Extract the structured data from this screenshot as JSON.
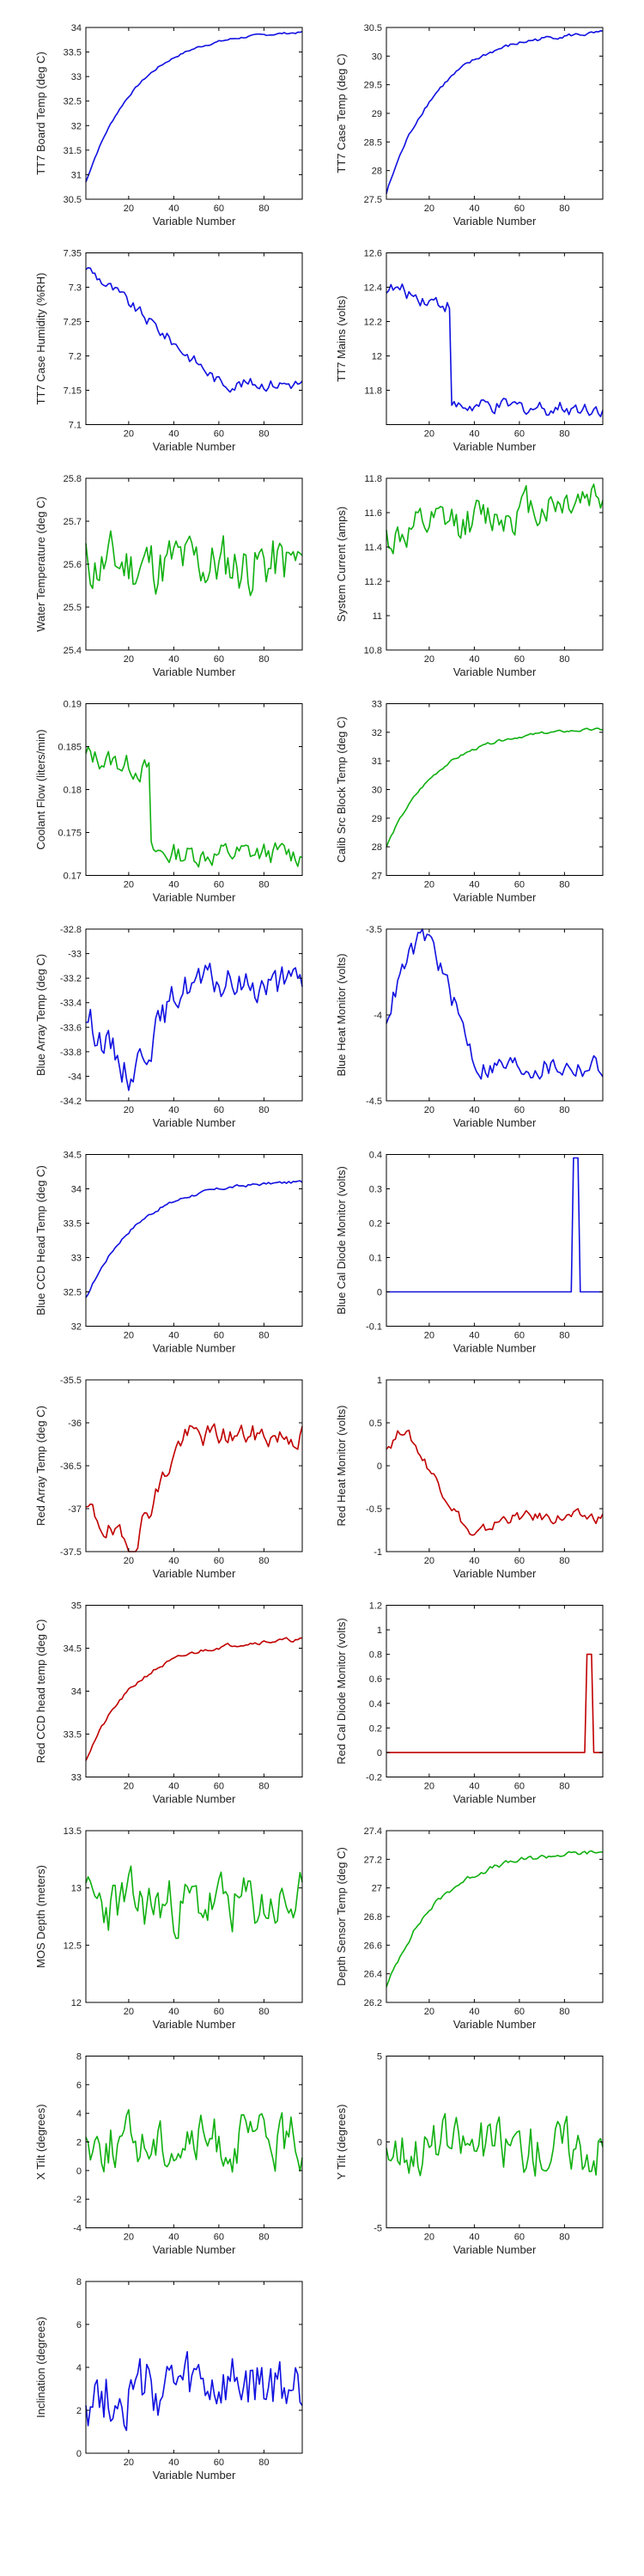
{
  "colors": {
    "blue": "#1010e0",
    "green": "#10b010",
    "red": "#c00000"
  },
  "chart_data": [
    {
      "type": "line",
      "xlabel": "Variable Number",
      "ylabel": "TT7 Board Temp (deg C)",
      "xlim": [
        1,
        97
      ],
      "ylim": [
        30.5,
        34
      ],
      "xticks": [
        20,
        40,
        60,
        80
      ],
      "yticks": [
        30.5,
        31,
        31.5,
        32,
        32.5,
        33,
        33.5,
        34
      ],
      "color": "blue",
      "shape": "rise",
      "y_start": 30.85,
      "y_end": 33.9,
      "noise": 0.02
    },
    {
      "type": "line",
      "xlabel": "Variable Number",
      "ylabel": "TT7 Case Temp (deg C)",
      "xlim": [
        1,
        97
      ],
      "ylim": [
        27.5,
        30.5
      ],
      "xticks": [
        20,
        40,
        60,
        80
      ],
      "yticks": [
        27.5,
        28,
        28.5,
        29,
        29.5,
        30,
        30.5
      ],
      "color": "blue",
      "shape": "rise",
      "y_start": 27.6,
      "y_end": 30.4,
      "noise": 0.03
    },
    {
      "type": "line",
      "xlabel": "Variable Number",
      "ylabel": "TT7 Case Humidity (%RH)",
      "xlim": [
        1,
        97
      ],
      "ylim": [
        7.1,
        7.35
      ],
      "xticks": [
        20,
        40,
        60,
        80
      ],
      "yticks": [
        7.1,
        7.15,
        7.2,
        7.25,
        7.3,
        7.35
      ],
      "color": "blue",
      "shape": "fall",
      "y_start": 7.33,
      "y_end": 7.16,
      "noise": 0.008
    },
    {
      "type": "line",
      "xlabel": "Variable Number",
      "ylabel": "TT7 Mains  (volts)",
      "xlim": [
        1,
        97
      ],
      "ylim": [
        11.6,
        12.6
      ],
      "xticks": [
        20,
        40,
        60,
        80
      ],
      "yticks": [
        11.8,
        12,
        12.2,
        12.4,
        12.6
      ],
      "color": "blue",
      "shape": "drop",
      "y_start": 12.4,
      "y_end": 11.7,
      "noise": 0.04
    },
    {
      "type": "line",
      "xlabel": "Variable Number",
      "ylabel": "Water Temperature (deg C)",
      "xlim": [
        1,
        97
      ],
      "ylim": [
        25.4,
        25.8
      ],
      "xticks": [
        20,
        40,
        60,
        80
      ],
      "yticks": [
        25.4,
        25.5,
        25.6,
        25.7,
        25.8
      ],
      "color": "green",
      "shape": "noise",
      "y_start": 25.6,
      "y_end": 25.6,
      "noise": 0.06
    },
    {
      "type": "line",
      "xlabel": "Variable Number",
      "ylabel": "System Current (amps)",
      "xlim": [
        1,
        97
      ],
      "ylim": [
        10.8,
        11.8
      ],
      "xticks": [
        20,
        40,
        60,
        80
      ],
      "yticks": [
        10.8,
        11,
        11.2,
        11.4,
        11.6,
        11.8
      ],
      "color": "green",
      "shape": "noise_up",
      "y_start": 11.45,
      "y_end": 11.72,
      "noise": 0.1
    },
    {
      "type": "line",
      "xlabel": "Variable Number",
      "ylabel": "Coolant Flow (liters/min)",
      "xlim": [
        1,
        97
      ],
      "ylim": [
        0.17,
        0.19
      ],
      "xticks": [
        20,
        40,
        60,
        80
      ],
      "yticks": [
        0.17,
        0.175,
        0.18,
        0.185,
        0.19
      ],
      "color": "green",
      "shape": "drop",
      "y_start": 0.184,
      "y_end": 0.1725,
      "noise": 0.0012
    },
    {
      "type": "line",
      "xlabel": "Variable Number",
      "ylabel": "Calib Src Block Temp (deg C)",
      "xlim": [
        1,
        97
      ],
      "ylim": [
        27,
        33
      ],
      "xticks": [
        20,
        40,
        60,
        80
      ],
      "yticks": [
        27,
        28,
        29,
        30,
        31,
        32,
        33
      ],
      "color": "green",
      "shape": "rise",
      "y_start": 28,
      "y_end": 32.1,
      "noise": 0.04
    },
    {
      "type": "line",
      "xlabel": "Variable Number",
      "ylabel": "Blue Array Temp (deg C)",
      "xlim": [
        1,
        97
      ],
      "ylim": [
        -34.2,
        -32.8
      ],
      "xticks": [
        20,
        40,
        60,
        80
      ],
      "yticks": [
        -34.2,
        -34,
        -33.8,
        -33.6,
        -33.4,
        -33.2,
        -33,
        -32.8
      ],
      "color": "blue",
      "shape": "dip_rise",
      "y_start": -33.5,
      "y_end": -33.25,
      "noise": 0.12
    },
    {
      "type": "line",
      "xlabel": "Variable Number",
      "ylabel": "Blue Heat Monitor (volts)",
      "xlim": [
        1,
        97
      ],
      "ylim": [
        -4.5,
        -3.5
      ],
      "xticks": [
        20,
        40,
        60,
        80
      ],
      "yticks": [
        -4.5,
        -4,
        -3.5
      ],
      "color": "blue",
      "shape": "hump",
      "y_start": -4.0,
      "y_end": -4.3,
      "noise": 0.06
    },
    {
      "type": "line",
      "xlabel": "Variable Number",
      "ylabel": "Blue CCD Head Temp (deg C)",
      "xlim": [
        1,
        97
      ],
      "ylim": [
        32,
        34.5
      ],
      "xticks": [
        20,
        40,
        60,
        80
      ],
      "yticks": [
        32,
        32.5,
        33,
        33.5,
        34,
        34.5
      ],
      "color": "blue",
      "shape": "rise",
      "y_start": 32.4,
      "y_end": 34.1,
      "noise": 0.02
    },
    {
      "type": "line",
      "xlabel": "Variable Number",
      "ylabel": "Blue Cal Diode Monitor (volts)",
      "xlim": [
        1,
        97
      ],
      "ylim": [
        -0.1,
        0.4
      ],
      "xticks": [
        20,
        40,
        60,
        80
      ],
      "yticks": [
        -0.1,
        0,
        0.1,
        0.2,
        0.3,
        0.4
      ],
      "color": "blue",
      "shape": "spike",
      "y_start": 0,
      "y_end": 0,
      "spike_at": [
        84,
        86
      ],
      "spike_val": 0.39,
      "noise": 0.0
    },
    {
      "type": "line",
      "xlabel": "Variable Number",
      "ylabel": "Red Array Temp (deg C)",
      "xlim": [
        1,
        97
      ],
      "ylim": [
        -37.5,
        -35.5
      ],
      "xticks": [
        20,
        40,
        60,
        80
      ],
      "yticks": [
        -37.5,
        -37,
        -36.5,
        -36,
        -35.5
      ],
      "color": "red",
      "shape": "dip_rise",
      "y_start": -37,
      "y_end": -36.15,
      "noise": 0.12
    },
    {
      "type": "line",
      "xlabel": "Variable Number",
      "ylabel": "Red Heat Monitor (volts)",
      "xlim": [
        1,
        97
      ],
      "ylim": [
        -1,
        1
      ],
      "xticks": [
        20,
        40,
        60,
        80
      ],
      "yticks": [
        -1,
        -0.5,
        0,
        0.5,
        1
      ],
      "color": "red",
      "shape": "hump_low",
      "y_start": 0.2,
      "y_end": -0.6,
      "noise": 0.06
    },
    {
      "type": "line",
      "xlabel": "Variable Number",
      "ylabel": "Red CCD head temp (deg C)",
      "xlim": [
        1,
        97
      ],
      "ylim": [
        33,
        35
      ],
      "xticks": [
        20,
        40,
        60,
        80
      ],
      "yticks": [
        33,
        33.5,
        34,
        34.5,
        35
      ],
      "color": "red",
      "shape": "rise",
      "y_start": 33.2,
      "y_end": 34.6,
      "noise": 0.02
    },
    {
      "type": "line",
      "xlabel": "Variable Number",
      "ylabel": "Red Cal Diode Monitor (volts)",
      "xlim": [
        1,
        97
      ],
      "ylim": [
        -0.2,
        1.2
      ],
      "xticks": [
        20,
        40,
        60,
        80
      ],
      "yticks": [
        -0.2,
        0,
        0.2,
        0.4,
        0.6,
        0.8,
        1,
        1.2
      ],
      "color": "red",
      "shape": "spike",
      "y_start": 0,
      "y_end": 0,
      "spike_at": [
        90,
        92
      ],
      "spike_val": 0.8,
      "noise": 0.0
    },
    {
      "type": "line",
      "xlabel": "Variable Number",
      "ylabel": "MOS Depth  (meters)",
      "xlim": [
        1,
        97
      ],
      "ylim": [
        12,
        13.5
      ],
      "xticks": [
        20,
        40,
        60,
        80
      ],
      "yticks": [
        12,
        12.5,
        13,
        13.5
      ],
      "color": "green",
      "shape": "noise",
      "y_start": 12.85,
      "y_end": 12.85,
      "noise": 0.22
    },
    {
      "type": "line",
      "xlabel": "Variable Number",
      "ylabel": "Depth Sensor Temp (deg C)",
      "xlim": [
        1,
        97
      ],
      "ylim": [
        26.2,
        27.4
      ],
      "xticks": [
        20,
        40,
        60,
        80
      ],
      "yticks": [
        26.2,
        26.4,
        26.6,
        26.8,
        27,
        27.2,
        27.4
      ],
      "color": "green",
      "shape": "rise",
      "y_start": 26.3,
      "y_end": 27.25,
      "noise": 0.015
    },
    {
      "type": "line",
      "xlabel": "Variable Number",
      "ylabel": "X Tilt  (degrees)",
      "xlim": [
        1,
        97
      ],
      "ylim": [
        -4,
        8
      ],
      "xticks": [
        20,
        40,
        60,
        80
      ],
      "yticks": [
        -4,
        -2,
        0,
        2,
        4,
        6,
        8
      ],
      "color": "green",
      "shape": "noise",
      "y_start": 2,
      "y_end": 2,
      "noise": 1.6
    },
    {
      "type": "line",
      "xlabel": "Variable Number",
      "ylabel": "Y Tilt  (degrees)",
      "xlim": [
        1,
        97
      ],
      "ylim": [
        -5,
        5
      ],
      "xticks": [
        20,
        40,
        60,
        80
      ],
      "yticks": [
        -5,
        0,
        5
      ],
      "color": "green",
      "shape": "noise",
      "y_start": -0.2,
      "y_end": -0.2,
      "noise": 1.4
    },
    {
      "type": "line",
      "xlabel": "Variable Number",
      "ylabel": "Inclination  (degrees)",
      "xlim": [
        1,
        97
      ],
      "ylim": [
        0,
        8
      ],
      "xticks": [
        20,
        40,
        60,
        80
      ],
      "yticks": [
        0,
        2,
        4,
        6,
        8
      ],
      "color": "blue",
      "shape": "noise",
      "y_start": 2.8,
      "y_end": 3.0,
      "noise": 1.3
    }
  ]
}
